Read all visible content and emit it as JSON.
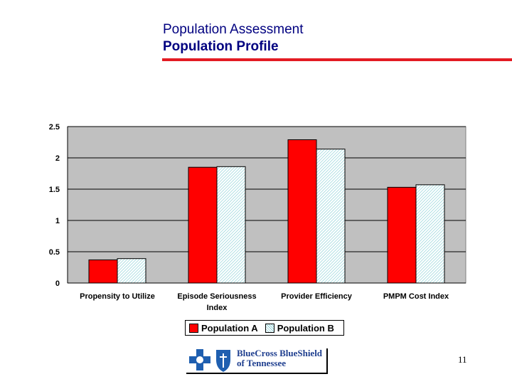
{
  "slide": {
    "supertitle": "Population Assessment",
    "title": "Population Profile",
    "page_number": "11"
  },
  "logo": {
    "line1": "BlueCross BlueShield",
    "line2": "of Tennessee"
  },
  "colors": {
    "header_rule": "#e31b23",
    "title_text": "#000080",
    "plot_background": "#c0c0c0",
    "population_a": "#ff0000",
    "population_b_hatch": "#8fd2d8",
    "logo_blue": "#1f5fb0"
  },
  "chart_data": {
    "type": "bar",
    "title": "",
    "xlabel": "",
    "ylabel": "",
    "ylim": [
      0,
      2.5
    ],
    "yticks": [
      "0",
      "0.5",
      "1",
      "1.5",
      "2",
      "2.5"
    ],
    "grid": true,
    "legend_position": "bottom",
    "categories": [
      [
        "Propensity to Utilize"
      ],
      [
        "Episode Seriousness",
        "Index"
      ],
      [
        "Provider Efficiency"
      ],
      [
        "PMPM Cost Index"
      ]
    ],
    "series": [
      {
        "name": "Population A",
        "values": [
          0.37,
          1.85,
          2.29,
          1.53
        ]
      },
      {
        "name": "Population B",
        "values": [
          0.39,
          1.86,
          2.14,
          1.57
        ]
      }
    ]
  }
}
